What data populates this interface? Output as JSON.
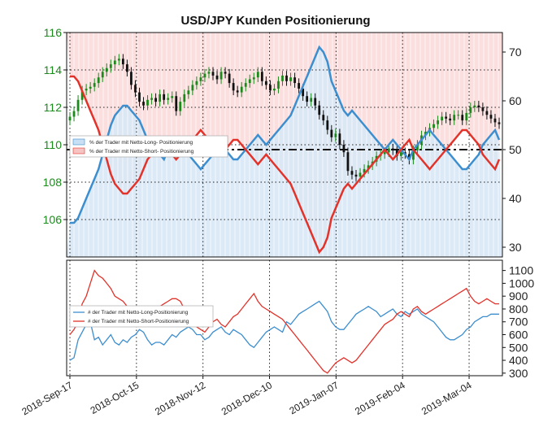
{
  "chart_data": [
    {
      "type": "line",
      "title": "USD/JPY Kunden Positionierung",
      "x_tick_labels": [
        "2018-Sep-17",
        "2018-Oct-15",
        "2018-Nov-12",
        "2018-Dec-10",
        "2019-Jan-07",
        "2019-Feb-04",
        "2019-Mar-04"
      ],
      "y_left_ticks": [
        106,
        108,
        110,
        112,
        114,
        116
      ],
      "y_left_lim": [
        104.0,
        116.0
      ],
      "y_right_ticks": [
        30,
        40,
        50,
        60,
        70
      ],
      "y_right_lim": [
        28,
        74
      ],
      "reference_line_right": 50,
      "grid": "dotted",
      "legend": {
        "position": "left-middle",
        "entries": [
          "% der Trader mit Netto-Long- Positionierung",
          "% der Trader mit Netto-Short- Positionierung"
        ]
      },
      "colors": {
        "long": "#3c8ecf",
        "short": "#e2322a",
        "long_fill": "#d8e8f6",
        "short_fill": "#fbdcdc",
        "candle_up": "#1b8a1b",
        "candle_down": "#111111"
      },
      "price_close": [
        111.5,
        111.8,
        112.4,
        112.9,
        113.0,
        113.1,
        113.3,
        113.6,
        113.9,
        114.1,
        114.3,
        114.5,
        114.6,
        114.3,
        113.9,
        113.2,
        112.8,
        112.3,
        112.1,
        112.4,
        112.5,
        112.3,
        112.7,
        112.4,
        112.5,
        112.6,
        111.8,
        112.3,
        112.7,
        112.9,
        113.2,
        113.4,
        113.6,
        113.8,
        113.9,
        113.7,
        113.5,
        113.9,
        113.8,
        113.3,
        112.9,
        112.8,
        113.1,
        113.3,
        113.5,
        113.6,
        113.9,
        113.4,
        113.2,
        112.9,
        113.0,
        113.4,
        113.7,
        113.4,
        113.6,
        113.3,
        113.0,
        112.6,
        112.3,
        112.5,
        112.1,
        111.6,
        111.3,
        110.8,
        110.4,
        110.6,
        110.0,
        109.6,
        108.6,
        108.4,
        108.3,
        108.5,
        108.7,
        108.9,
        109.1,
        109.4,
        109.5,
        109.6,
        109.8,
        109.7,
        109.4,
        109.6,
        109.5,
        109.2,
        109.7,
        110.0,
        110.5,
        110.7,
        110.9,
        111.1,
        111.3,
        111.5,
        111.4,
        111.3,
        111.6,
        111.6,
        111.3,
        111.7,
        112.0,
        112.1,
        112.0,
        111.8,
        111.6,
        111.4,
        111.2,
        111.1
      ],
      "long_percent": [
        35,
        35,
        36,
        38,
        40,
        42,
        44,
        46,
        49,
        52,
        55,
        57,
        58,
        59,
        59,
        58,
        57,
        56,
        54,
        52,
        51,
        50,
        49,
        48,
        50,
        51,
        52,
        51,
        50,
        49,
        48,
        47,
        46,
        47,
        48,
        49,
        50,
        51,
        50,
        49,
        48,
        48,
        49,
        50,
        51,
        52,
        53,
        52,
        51,
        52,
        53,
        54,
        55,
        56,
        57,
        59,
        61,
        63,
        65,
        67,
        69,
        71,
        70,
        68,
        64,
        62,
        60,
        58,
        57,
        58,
        57,
        56,
        55,
        54,
        53,
        52,
        51,
        50,
        51,
        52,
        51,
        50,
        49,
        48,
        50,
        51,
        52,
        53,
        54,
        53,
        52,
        51,
        50,
        49,
        48,
        47,
        46,
        46,
        47,
        48,
        49,
        51,
        52,
        53,
        54,
        52
      ],
      "short_percent": [
        65,
        65,
        64,
        62,
        60,
        58,
        56,
        54,
        51,
        48,
        45,
        43,
        42,
        41,
        41,
        42,
        43,
        44,
        46,
        48,
        49,
        50,
        51,
        52,
        50,
        49,
        48,
        49,
        50,
        51,
        52,
        53,
        54,
        53,
        52,
        51,
        50,
        49,
        50,
        51,
        52,
        52,
        51,
        50,
        49,
        48,
        47,
        48,
        49,
        48,
        47,
        46,
        45,
        44,
        43,
        41,
        39,
        37,
        35,
        33,
        31,
        29,
        30,
        32,
        36,
        38,
        40,
        42,
        43,
        42,
        43,
        44,
        45,
        46,
        47,
        48,
        49,
        50,
        49,
        48,
        49,
        50,
        51,
        52,
        50,
        49,
        48,
        47,
        46,
        47,
        48,
        49,
        50,
        51,
        52,
        53,
        54,
        54,
        53,
        52,
        51,
        49,
        48,
        47,
        46,
        48
      ]
    },
    {
      "type": "line",
      "y_ticks": [
        300,
        400,
        500,
        600,
        700,
        800,
        900,
        1000,
        1100
      ],
      "y_lim": [
        280,
        1180
      ],
      "legend": {
        "position": "left-middle",
        "entries": [
          "# der Trader mit Netto-Long-Positionierung",
          "# der Trader mit Netto-Short-Positionierung"
        ]
      },
      "long_count": [
        400,
        420,
        560,
        620,
        680,
        700,
        560,
        580,
        520,
        560,
        600,
        540,
        520,
        560,
        540,
        580,
        600,
        640,
        620,
        560,
        520,
        540,
        540,
        520,
        560,
        600,
        580,
        620,
        640,
        660,
        640,
        600,
        600,
        560,
        580,
        620,
        640,
        660,
        620,
        600,
        640,
        620,
        600,
        560,
        520,
        500,
        540,
        580,
        620,
        640,
        660,
        640,
        620,
        700,
        680,
        720,
        760,
        780,
        800,
        820,
        840,
        860,
        820,
        780,
        700,
        660,
        640,
        640,
        680,
        720,
        760,
        780,
        800,
        820,
        800,
        780,
        740,
        760,
        780,
        800,
        760,
        740,
        780,
        760,
        780,
        800,
        760,
        740,
        720,
        700,
        660,
        620,
        580,
        560,
        560,
        580,
        600,
        640,
        660,
        700,
        720,
        740,
        740,
        760,
        760,
        760
      ],
      "short_count": [
        600,
        640,
        700,
        840,
        900,
        1000,
        1100,
        1060,
        1040,
        1000,
        960,
        900,
        880,
        860,
        820,
        800,
        760,
        740,
        720,
        700,
        680,
        760,
        820,
        840,
        860,
        880,
        880,
        860,
        800,
        740,
        700,
        660,
        640,
        620,
        660,
        700,
        720,
        680,
        660,
        700,
        740,
        760,
        800,
        840,
        880,
        920,
        860,
        820,
        800,
        780,
        760,
        740,
        720,
        680,
        640,
        600,
        560,
        520,
        480,
        440,
        400,
        360,
        320,
        300,
        340,
        380,
        400,
        420,
        400,
        380,
        400,
        440,
        480,
        520,
        560,
        600,
        640,
        680,
        700,
        720,
        760,
        780,
        760,
        740,
        800,
        820,
        780,
        760,
        780,
        800,
        820,
        840,
        860,
        880,
        900,
        920,
        940,
        960,
        900,
        860,
        840,
        860,
        880,
        860,
        840,
        840
      ]
    }
  ]
}
